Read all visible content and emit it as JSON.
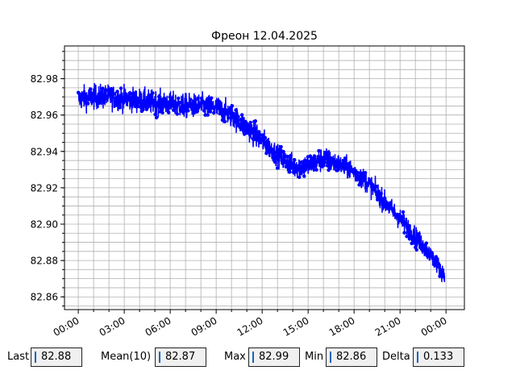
{
  "chart_data": {
    "type": "line",
    "title": "Фреон 12.04.2025",
    "xlabel": "",
    "ylabel": "",
    "x_ticks": [
      "00:00",
      "03:00",
      "06:00",
      "09:00",
      "12:00",
      "15:00",
      "18:00",
      "21:00",
      "00:00"
    ],
    "y_ticks": [
      "82.86",
      "82.88",
      "82.90",
      "82.92",
      "82.94",
      "82.96",
      "82.98"
    ],
    "xlim_hours": [
      -0.9,
      25.2
    ],
    "ylim": [
      82.853,
      82.998
    ],
    "grid": true,
    "series": [
      {
        "color": "#0000ff",
        "marker": "circle",
        "x_hours": [
          0,
          1,
          2,
          3,
          4,
          5,
          6,
          7,
          8,
          9,
          10,
          11,
          12,
          13,
          14,
          15,
          16,
          17,
          18,
          19,
          20,
          21,
          22,
          23,
          23.9
        ],
        "y_mean": [
          82.969,
          82.97,
          82.97,
          82.969,
          82.968,
          82.967,
          82.966,
          82.965,
          82.965,
          82.964,
          82.96,
          82.953,
          82.946,
          82.938,
          82.932,
          82.932,
          82.936,
          82.933,
          82.929,
          82.922,
          82.912,
          82.903,
          82.893,
          82.883,
          82.872
        ],
        "y_spread": [
          0.008,
          0.008,
          0.008,
          0.008,
          0.008,
          0.008,
          0.008,
          0.008,
          0.008,
          0.008,
          0.008,
          0.008,
          0.008,
          0.007,
          0.008,
          0.008,
          0.008,
          0.007,
          0.007,
          0.007,
          0.007,
          0.007,
          0.007,
          0.006,
          0.006
        ]
      }
    ]
  },
  "stats": [
    {
      "label": "Last",
      "value": "82.88"
    },
    {
      "label": "Mean(10)",
      "value": "82.87"
    },
    {
      "label": "Max",
      "value": "82.99"
    },
    {
      "label": "Min",
      "value": "82.86"
    },
    {
      "label": "Delta",
      "value": "0.133"
    }
  ]
}
